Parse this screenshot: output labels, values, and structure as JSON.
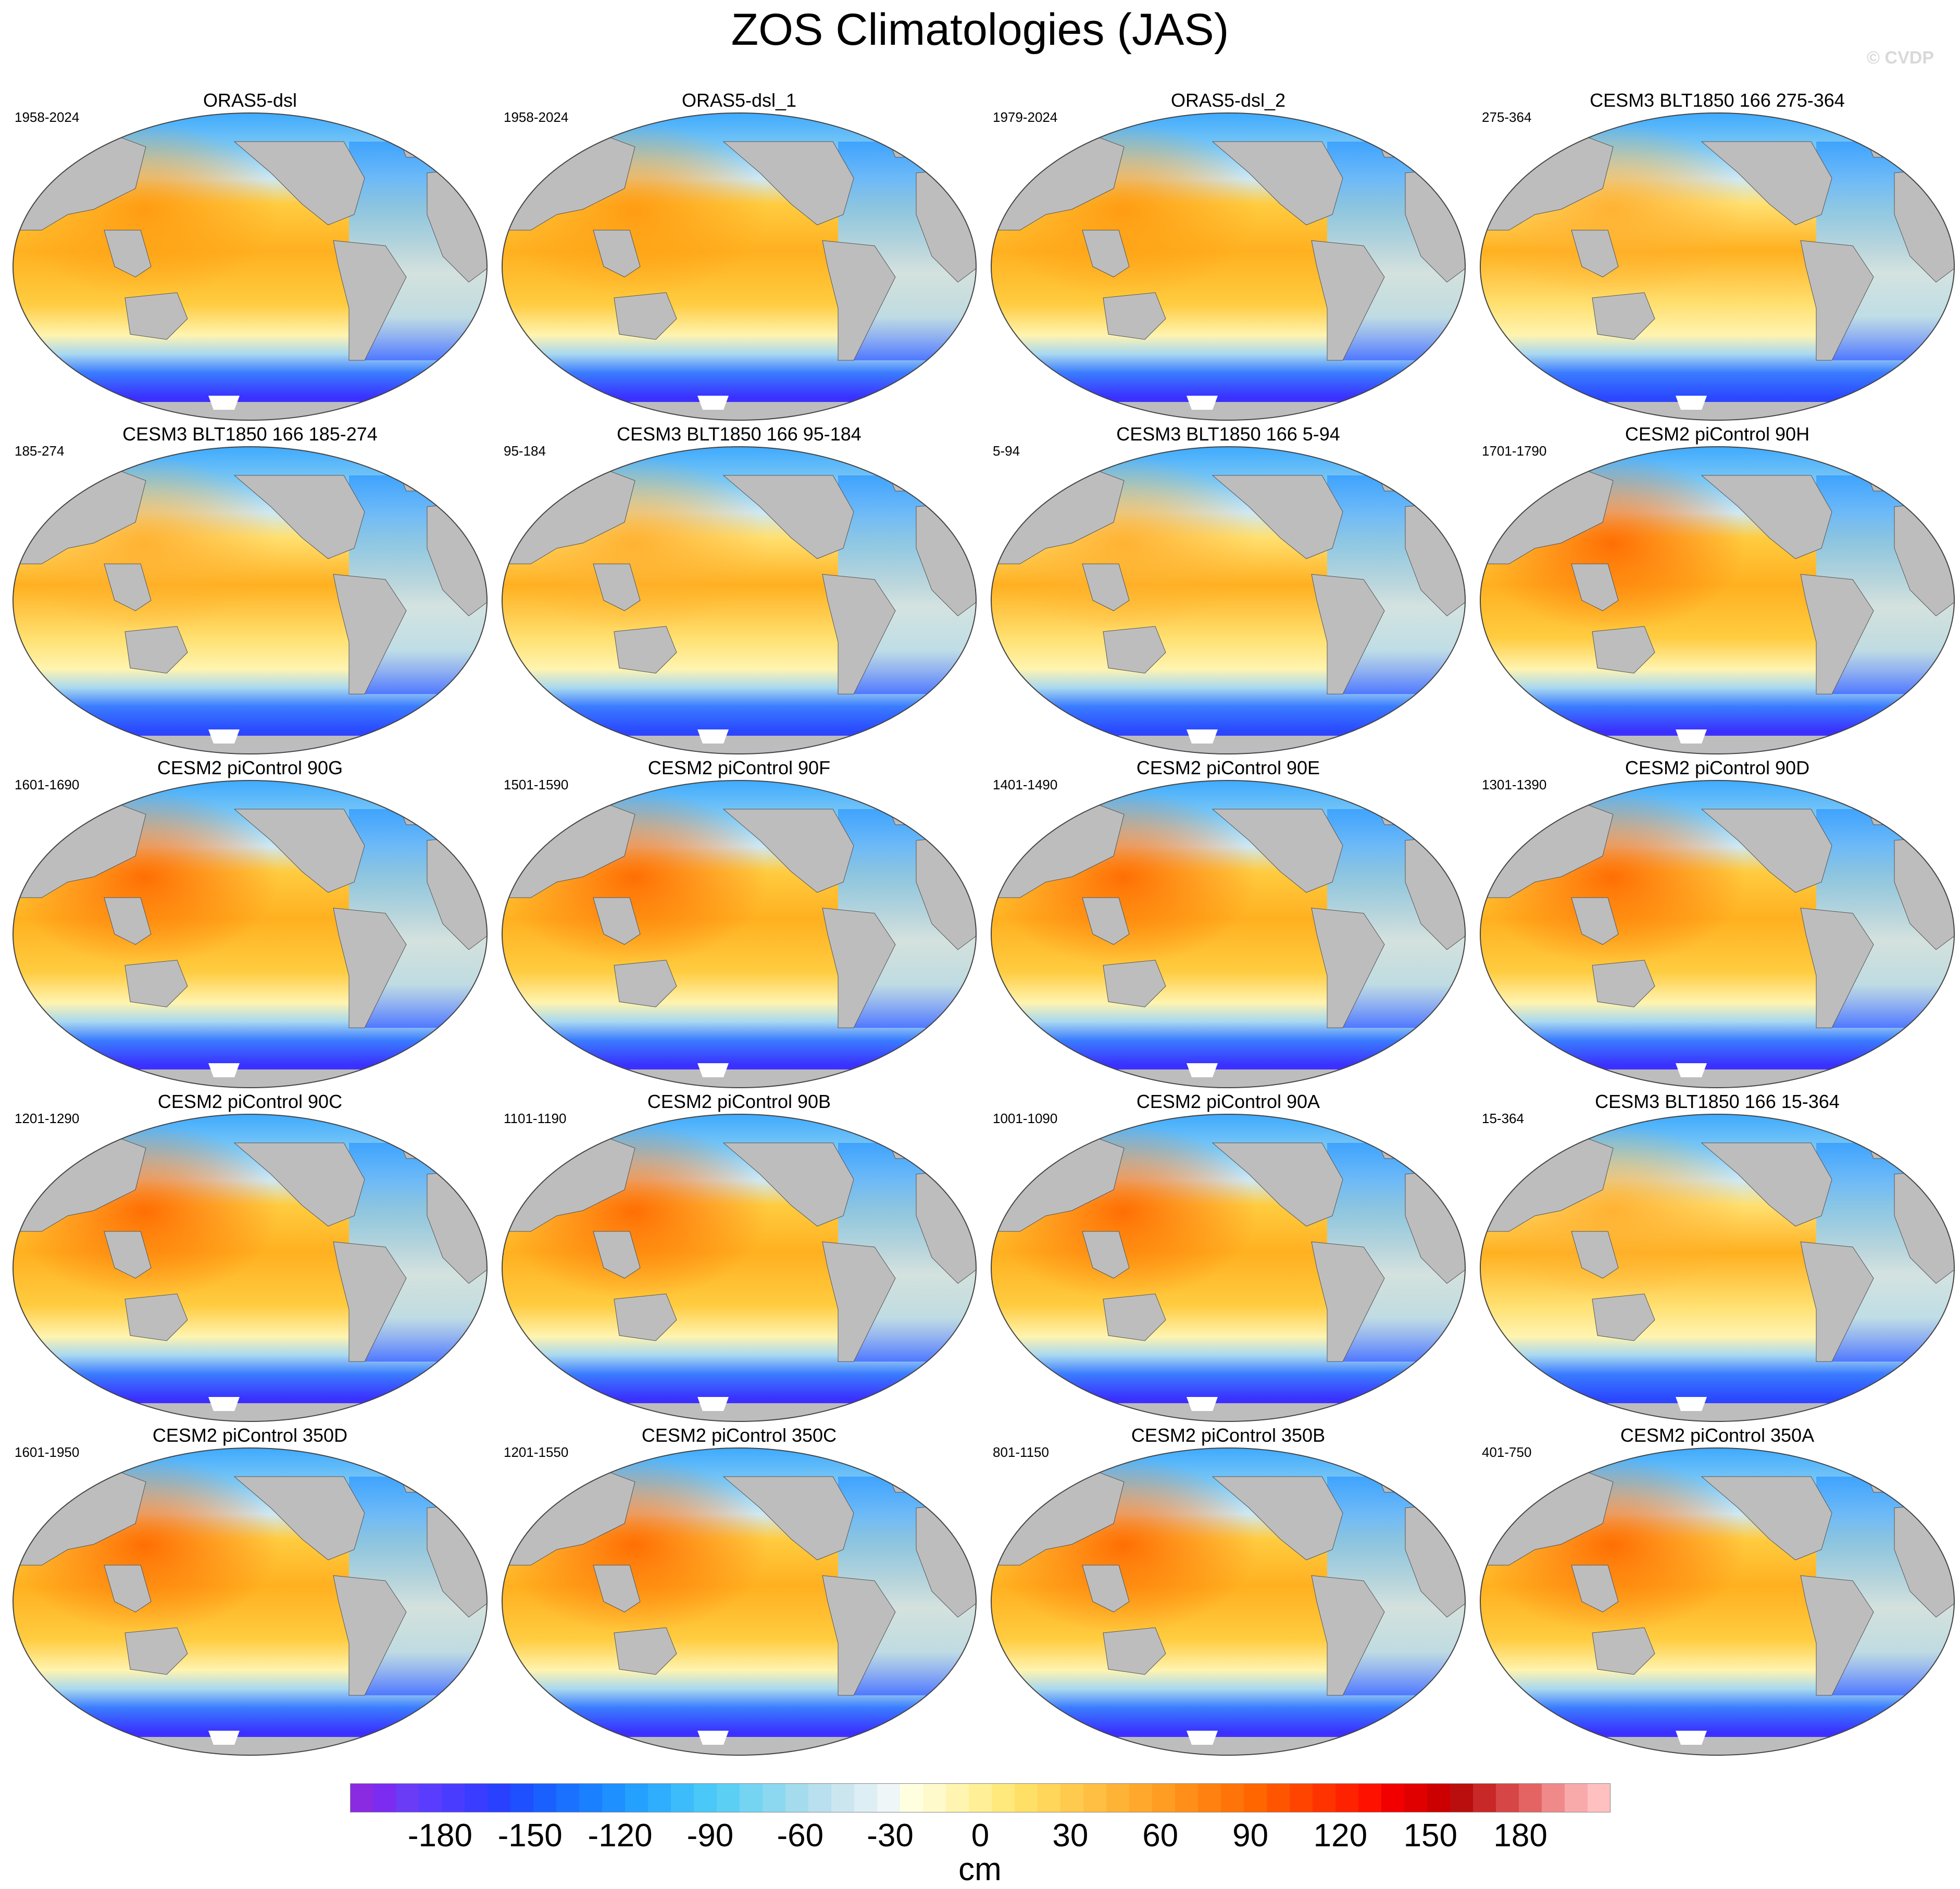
{
  "title": "ZOS Climatologies (JAS)",
  "watermark": "© CVDP",
  "panels": [
    {
      "title": "ORAS5-dsl",
      "years": "1958-2024",
      "pattern": "obs"
    },
    {
      "title": "ORAS5-dsl_1",
      "years": "1958-2024",
      "pattern": "obs"
    },
    {
      "title": "ORAS5-dsl_2",
      "years": "1979-2024",
      "pattern": "obs"
    },
    {
      "title": "CESM3 BLT1850 166 275-364",
      "years": "275-364",
      "pattern": "cesm3"
    },
    {
      "title": "CESM3 BLT1850 166 185-274",
      "years": "185-274",
      "pattern": "cesm3"
    },
    {
      "title": "CESM3 BLT1850 166 95-184",
      "years": "95-184",
      "pattern": "cesm3"
    },
    {
      "title": "CESM3 BLT1850 166 5-94",
      "years": "5-94",
      "pattern": "cesm3"
    },
    {
      "title": "CESM2 piControl 90H",
      "years": "1701-1790",
      "pattern": "cesm2"
    },
    {
      "title": "CESM2 piControl 90G",
      "years": "1601-1690",
      "pattern": "cesm2"
    },
    {
      "title": "CESM2 piControl 90F",
      "years": "1501-1590",
      "pattern": "cesm2"
    },
    {
      "title": "CESM2 piControl 90E",
      "years": "1401-1490",
      "pattern": "cesm2"
    },
    {
      "title": "CESM2 piControl 90D",
      "years": "1301-1390",
      "pattern": "cesm2"
    },
    {
      "title": "CESM2 piControl 90C",
      "years": "1201-1290",
      "pattern": "cesm2"
    },
    {
      "title": "CESM2 piControl 90B",
      "years": "1101-1190",
      "pattern": "cesm2"
    },
    {
      "title": "CESM2 piControl 90A",
      "years": "1001-1090",
      "pattern": "cesm2"
    },
    {
      "title": "CESM3 BLT1850 166 15-364",
      "years": "15-364",
      "pattern": "cesm3"
    },
    {
      "title": "CESM2 piControl 350D",
      "years": "1601-1950",
      "pattern": "cesm2"
    },
    {
      "title": "CESM2 piControl 350C",
      "years": "1201-1550",
      "pattern": "cesm2"
    },
    {
      "title": "CESM2 piControl 350B",
      "years": "801-1150",
      "pattern": "cesm2"
    },
    {
      "title": "CESM2 piControl 350A",
      "years": "401-750",
      "pattern": "cesm2"
    }
  ],
  "colorbar": {
    "units": "cm",
    "ticks": [
      "-180",
      "-150",
      "-120",
      "-90",
      "-60",
      "-30",
      "0",
      "30",
      "60",
      "90",
      "120",
      "150",
      "180"
    ],
    "colors": [
      "#8a2be2",
      "#7b2cf0",
      "#6a3cf5",
      "#5a3cff",
      "#4a3cff",
      "#3a3cff",
      "#2a40ff",
      "#1e50ff",
      "#1a60ff",
      "#1a70ff",
      "#1a80ff",
      "#1e90ff",
      "#24a0ff",
      "#2eaefc",
      "#3cbcfa",
      "#4ac8f8",
      "#5ccff5",
      "#74d4f2",
      "#8cd8f0",
      "#a4dcee",
      "#b8e0ee",
      "#cce6f0",
      "#ddeef4",
      "#eef6f8",
      "#ffffe0",
      "#fffacc",
      "#fff5b0",
      "#ffef96",
      "#ffe97c",
      "#ffe066",
      "#ffd55a",
      "#ffca4e",
      "#ffbf42",
      "#ffb336",
      "#ffa82c",
      "#ff9c22",
      "#ff8f18",
      "#ff8210",
      "#ff7408",
      "#ff6600",
      "#ff5500",
      "#ff4400",
      "#ff3300",
      "#ff2200",
      "#ff1100",
      "#f20000",
      "#e00000",
      "#cc0000",
      "#ba0e0e",
      "#c82828",
      "#d64646",
      "#e46464",
      "#f08a8a",
      "#f8aaaa",
      "#ffc0c0"
    ]
  }
}
